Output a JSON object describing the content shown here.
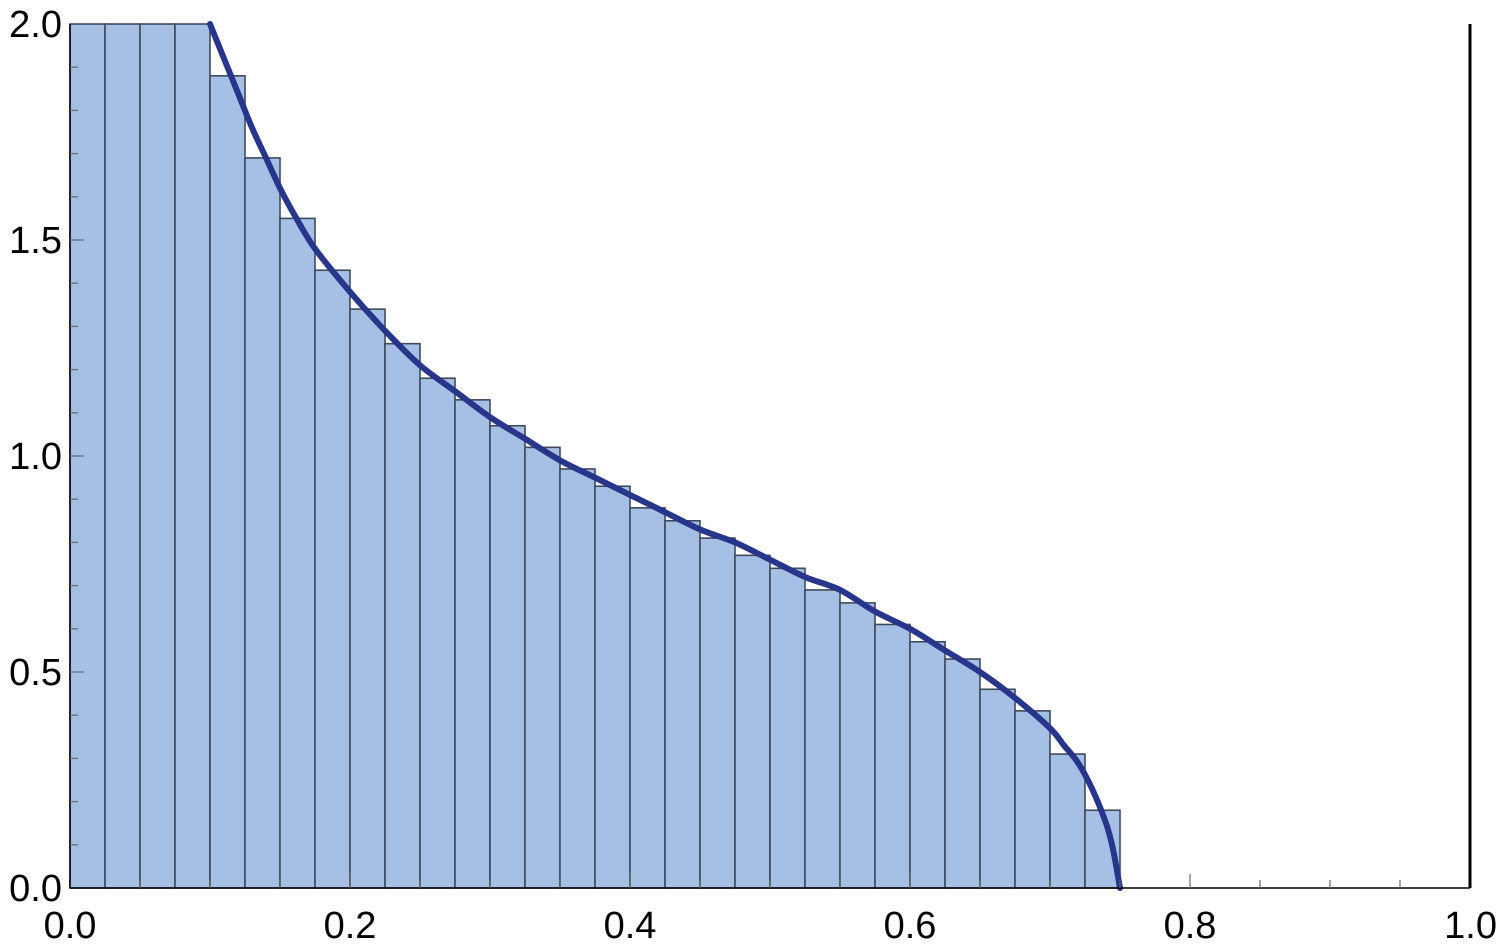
{
  "chart_data": {
    "type": "bar",
    "title": "",
    "xlabel": "",
    "ylabel": "",
    "xlim": [
      0.0,
      1.0
    ],
    "ylim": [
      0.0,
      2.0
    ],
    "grid": false,
    "bin_width": 0.025,
    "x_tick_labels": [
      "0.0",
      "0.2",
      "0.4",
      "0.6",
      "0.8",
      "1.0"
    ],
    "y_tick_labels": [
      "0.0",
      "0.5",
      "1.0",
      "1.5",
      "2.0"
    ],
    "histogram": {
      "bin_start": 0.0,
      "values": [
        2.0,
        2.0,
        2.0,
        2.0,
        1.88,
        1.69,
        1.55,
        1.43,
        1.34,
        1.26,
        1.18,
        1.13,
        1.07,
        1.02,
        0.97,
        0.93,
        0.88,
        0.85,
        0.81,
        0.77,
        0.74,
        0.69,
        0.66,
        0.61,
        0.57,
        0.53,
        0.46,
        0.41,
        0.31,
        0.18
      ]
    },
    "curve": {
      "x": [
        0.1,
        0.11,
        0.12,
        0.13,
        0.14,
        0.15,
        0.16,
        0.175,
        0.2,
        0.225,
        0.25,
        0.275,
        0.3,
        0.325,
        0.35,
        0.375,
        0.4,
        0.425,
        0.45,
        0.475,
        0.5,
        0.525,
        0.55,
        0.575,
        0.6,
        0.625,
        0.65,
        0.675,
        0.7,
        0.71,
        0.72,
        0.73,
        0.74,
        0.745,
        0.75
      ],
      "y": [
        2.0,
        1.92,
        1.84,
        1.76,
        1.69,
        1.62,
        1.56,
        1.48,
        1.38,
        1.29,
        1.21,
        1.15,
        1.09,
        1.04,
        0.99,
        0.95,
        0.91,
        0.87,
        0.83,
        0.8,
        0.76,
        0.72,
        0.69,
        0.64,
        0.6,
        0.55,
        0.5,
        0.44,
        0.37,
        0.33,
        0.29,
        0.23,
        0.15,
        0.09,
        0.0
      ]
    },
    "colors": {
      "bar_fill": "#a6c0e5",
      "bar_stroke": "#3e4a5c",
      "curve": "#27358a",
      "axis": "#000000"
    }
  }
}
